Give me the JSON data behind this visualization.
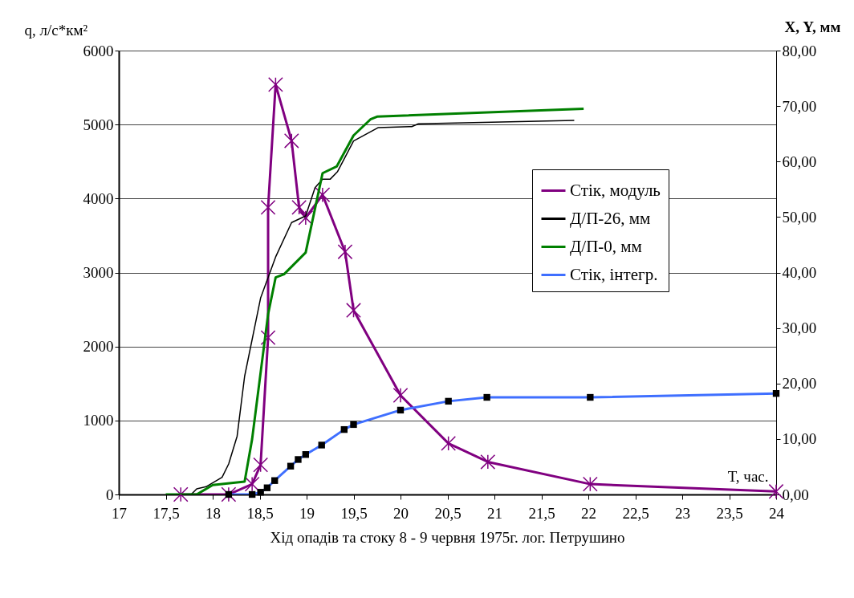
{
  "chart_data": {
    "type": "line",
    "title": "Хід опадів та стоку  8 - 9 червня 1975г. лог. Петрушино",
    "xlabel": "T, час.",
    "ylabel": "q, л/с*км²",
    "y2label": "X, Y, мм",
    "xlim": [
      17,
      24
    ],
    "xticks": [
      17,
      {
        "value": 17.5,
        "label": "17,5"
      },
      18,
      {
        "value": 18.5,
        "label": "18,5"
      },
      19,
      {
        "value": 19.5,
        "label": "19,5"
      },
      20,
      {
        "value": 20.5,
        "label": "20,5"
      },
      21,
      {
        "value": 21.5,
        "label": "21,5"
      },
      22,
      {
        "value": 22.5,
        "label": "22,5"
      },
      23,
      {
        "value": 23.5,
        "label": "23,5"
      },
      24
    ],
    "ylim": [
      0,
      6000
    ],
    "yticks": [
      0,
      1000,
      2000,
      3000,
      4000,
      5000,
      6000
    ],
    "y2lim": [
      0,
      80
    ],
    "y2ticks": [
      {
        "value": 0,
        "label": "0,00"
      },
      {
        "value": 10,
        "label": "10,00"
      },
      {
        "value": 20,
        "label": "20,00"
      },
      {
        "value": 30,
        "label": "30,00"
      },
      {
        "value": 40,
        "label": "40,00"
      },
      {
        "value": 50,
        "label": "50,00"
      },
      {
        "value": 60,
        "label": "60,00"
      },
      {
        "value": 70,
        "label": "70,00"
      },
      {
        "value": 80,
        "label": "80,00"
      }
    ],
    "grid": "y",
    "legend": "right",
    "series": [
      {
        "name": "Стік, модуль",
        "color": "#800080",
        "marker": "cross",
        "x": [
          17.66,
          18.17,
          18.42,
          18.51,
          18.59,
          18.59,
          18.67,
          18.84,
          18.92,
          18.99,
          19.17,
          19.41,
          19.5,
          20.0,
          20.51,
          20.93,
          22.02,
          24.0
        ],
        "values": [
          0,
          0,
          140,
          400,
          2120,
          3880,
          5540,
          4780,
          3880,
          3740,
          4050,
          3280,
          2490,
          1340,
          690,
          440,
          140,
          40
        ]
      },
      {
        "name": "Д/П-26, мм",
        "color": "#000000",
        "marker": "none",
        "axis": "y2",
        "x": [
          17.77,
          17.83,
          17.93,
          18.1,
          18.17,
          18.26,
          18.34,
          18.51,
          18.67,
          18.84,
          18.99,
          19.09,
          19.17,
          19.25,
          19.33,
          19.5,
          19.76,
          20.12,
          20.19,
          21.85
        ],
        "values": [
          0,
          1.0,
          1.4,
          3.1,
          5.5,
          10.5,
          21.3,
          35.4,
          42.8,
          49.0,
          50.2,
          55.3,
          56.8,
          56.8,
          58.2,
          63.7,
          66.1,
          66.3,
          66.8,
          67.4
        ]
      },
      {
        "name": "Д/П-0, мм",
        "color": "#008000",
        "marker": "none",
        "axis": "y2",
        "x": [
          17.5,
          17.83,
          18.0,
          18.34,
          18.42,
          18.59,
          18.67,
          18.76,
          18.99,
          19.17,
          19.32,
          19.5,
          19.68,
          19.75,
          21.95
        ],
        "values": [
          0,
          0,
          1.7,
          2.3,
          10.0,
          32.5,
          39.1,
          39.7,
          43.6,
          57.9,
          59.1,
          64.7,
          67.6,
          68.1,
          69.5
        ]
      },
      {
        "name": "Стік, інтегр.",
        "color": "#3f6fff",
        "marker": "square",
        "axis": "y2",
        "x": [
          18.17,
          18.42,
          18.51,
          18.58,
          18.66,
          18.83,
          18.91,
          18.99,
          19.16,
          19.4,
          19.5,
          20.0,
          20.51,
          20.92,
          22.02,
          24.0
        ],
        "values": [
          0,
          0,
          0.4,
          1.2,
          2.5,
          5.1,
          6.3,
          7.2,
          8.9,
          11.7,
          12.6,
          15.2,
          16.8,
          17.5,
          17.5,
          18.2
        ]
      }
    ]
  }
}
